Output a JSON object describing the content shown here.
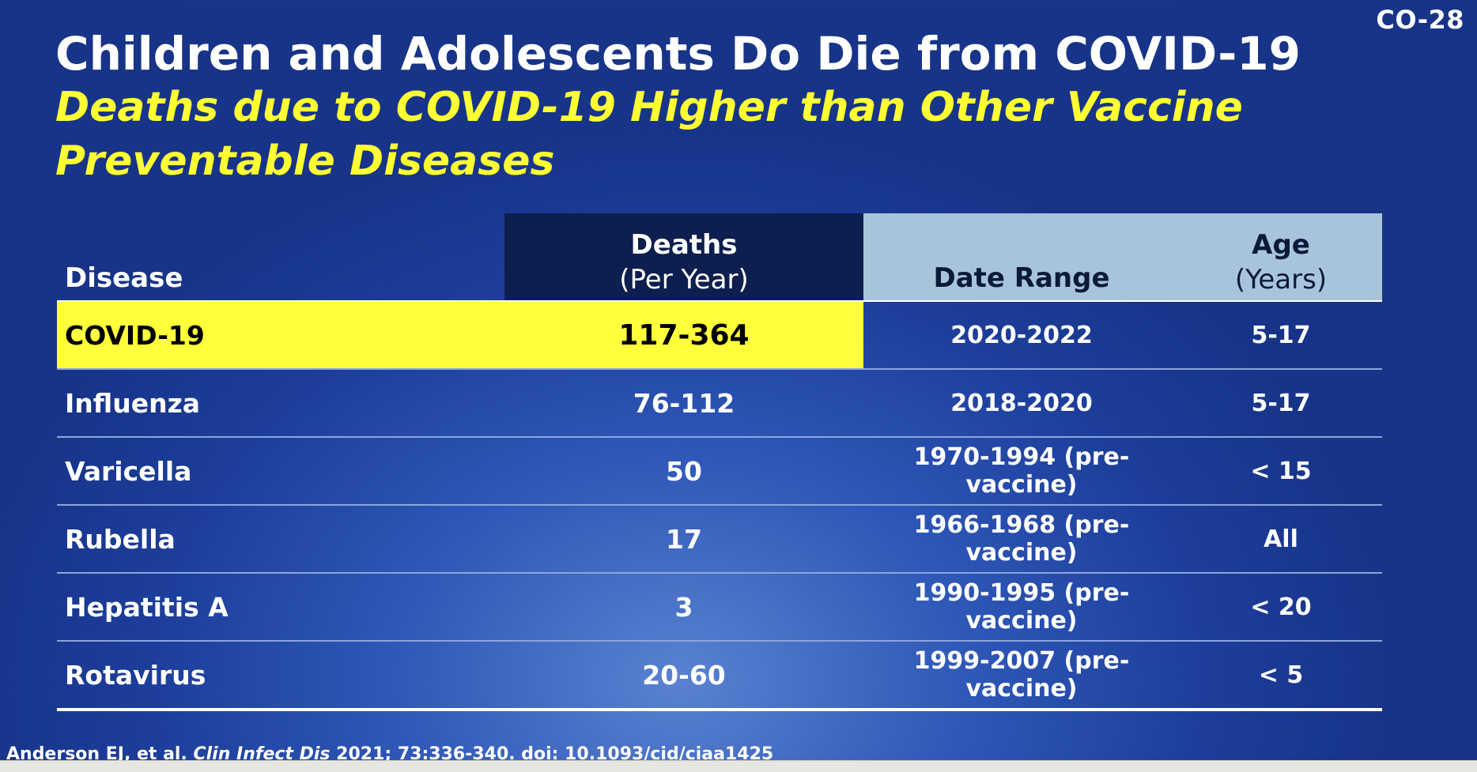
{
  "slide": {
    "id": "CO-28",
    "title": "Children and Adolescents Do Die from COVID-19",
    "subtitle": "Deaths due to COVID-19 Higher than Other Vaccine Preventable Diseases"
  },
  "table": {
    "headers": {
      "disease": "Disease",
      "deaths": "Deaths",
      "deaths_sub": "(Per Year)",
      "date_range": "Date Range",
      "age": "Age",
      "age_sub": "(Years)"
    },
    "rows": [
      {
        "disease": "COVID-19",
        "deaths": "117-364",
        "date_range": "2020-2022",
        "age": "5-17"
      },
      {
        "disease": "Influenza",
        "deaths": "76-112",
        "date_range": "2018-2020",
        "age": "5-17"
      },
      {
        "disease": "Varicella",
        "deaths": "50",
        "date_range": "1970-1994 (pre-vaccine)",
        "age": "< 15"
      },
      {
        "disease": "Rubella",
        "deaths": "17",
        "date_range": "1966-1968 (pre-vaccine)",
        "age": "All"
      },
      {
        "disease": "Hepatitis A",
        "deaths": "3",
        "date_range": "1990-1995 (pre-vaccine)",
        "age": "< 20"
      },
      {
        "disease": "Rotavirus",
        "deaths": "20-60",
        "date_range": "1999-2007 (pre-vaccine)",
        "age": "< 5"
      }
    ]
  },
  "citation": {
    "authors": "Anderson EJ, et al.",
    "journal": "Clin Infect Dis",
    "ref": "2021; 73:336-340. doi: 10.1093/cid/ciaa1425"
  },
  "colors": {
    "highlight": "#ffff3c",
    "header_dark": "#0d1f4e",
    "header_light": "#a8c4da",
    "background": "#1c3d9a"
  }
}
